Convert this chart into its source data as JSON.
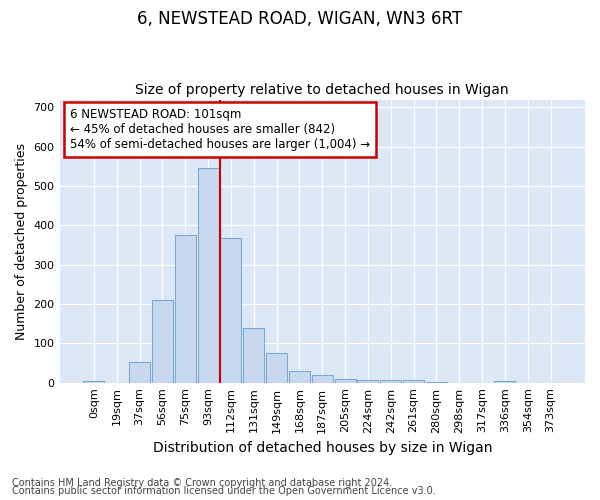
{
  "title1": "6, NEWSTEAD ROAD, WIGAN, WN3 6RT",
  "title2": "Size of property relative to detached houses in Wigan",
  "xlabel": "Distribution of detached houses by size in Wigan",
  "ylabel": "Number of detached properties",
  "categories": [
    "0sqm",
    "19sqm",
    "37sqm",
    "56sqm",
    "75sqm",
    "93sqm",
    "112sqm",
    "131sqm",
    "149sqm",
    "168sqm",
    "187sqm",
    "205sqm",
    "224sqm",
    "242sqm",
    "261sqm",
    "280sqm",
    "298sqm",
    "317sqm",
    "336sqm",
    "354sqm",
    "373sqm"
  ],
  "bar_heights": [
    5,
    0,
    52,
    210,
    375,
    547,
    367,
    140,
    75,
    30,
    20,
    10,
    8,
    8,
    8,
    3,
    0,
    0,
    4,
    0,
    0
  ],
  "bar_color": "#c8d8ef",
  "bar_edge_color": "#7aaad4",
  "fig_bg_color": "#ffffff",
  "plot_bg_color": "#dce8f5",
  "grid_color": "#ffffff",
  "vline_x": 5.5,
  "vline_color": "#cc0000",
  "annotation_text": "6 NEWSTEAD ROAD: 101sqm\n← 45% of detached houses are smaller (842)\n54% of semi-detached houses are larger (1,004) →",
  "annotation_box_color": "#ffffff",
  "annotation_box_edge_color": "#cc0000",
  "footer1": "Contains HM Land Registry data © Crown copyright and database right 2024.",
  "footer2": "Contains public sector information licensed under the Open Government Licence v3.0.",
  "ylim": [
    0,
    720
  ],
  "yticks": [
    0,
    100,
    200,
    300,
    400,
    500,
    600,
    700
  ],
  "title1_fontsize": 12,
  "title2_fontsize": 10,
  "xlabel_fontsize": 10,
  "ylabel_fontsize": 9,
  "tick_fontsize": 8,
  "footer_fontsize": 7
}
